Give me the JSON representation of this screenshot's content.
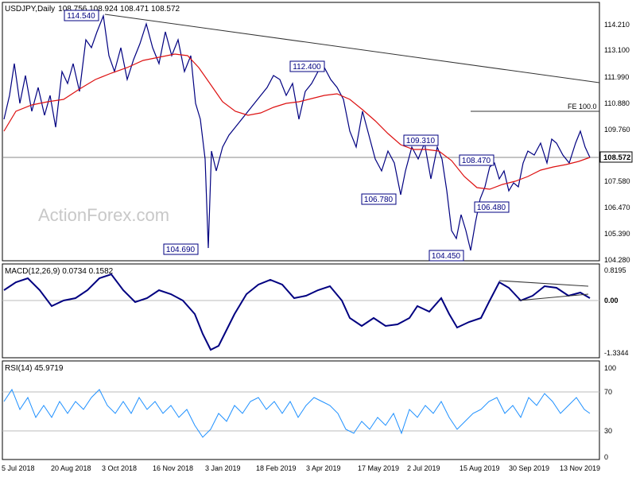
{
  "chart_data": [
    {
      "type": "candlestick",
      "title": "USDJPY,Daily",
      "ohlc_text": "108.756 108.924 108.471 108.572",
      "current_price": "108.572",
      "y_ticks": [
        "114.210",
        "113.100",
        "111.990",
        "110.880",
        "109.760",
        "108.650",
        "107.580",
        "106.470",
        "105.390",
        "104.280"
      ],
      "x_ticks": [
        "5 Jul 2018",
        "20 Aug 2018",
        "3 Oct 2018",
        "16 Nov 2018",
        "3 Jan 2019",
        "18 Feb 2019",
        "3 Apr 2019",
        "17 May 2019",
        "2 Jul 2019",
        "15 Aug 2019",
        "30 Sep 2019",
        "13 Nov 2019"
      ],
      "price_labels": [
        "114.540",
        "112.400",
        "109.310",
        "108.470",
        "106.780",
        "106.480",
        "104.690",
        "104.450"
      ],
      "fe_label": "FE 100.0",
      "watermark": "ActionForex.com",
      "moving_average": "red line (approx. 55-day)",
      "trend_line": "descending from 114.540 high"
    },
    {
      "type": "line",
      "title": "MACD(12,26,9) 0.0734 0.1582",
      "y_ticks": [
        "0.8195",
        "0.00",
        "-1.3344"
      ]
    },
    {
      "type": "line",
      "title": "RSI(14) 45.9719",
      "y_ticks": [
        "100",
        "70",
        "30",
        "0"
      ]
    }
  ],
  "colors": {
    "price": "#000080",
    "ma": "#dd1111",
    "macd": "#000080",
    "signal": "#bbbbbb",
    "rsi": "#1e90ff",
    "watermark": "#c8c8c8"
  }
}
